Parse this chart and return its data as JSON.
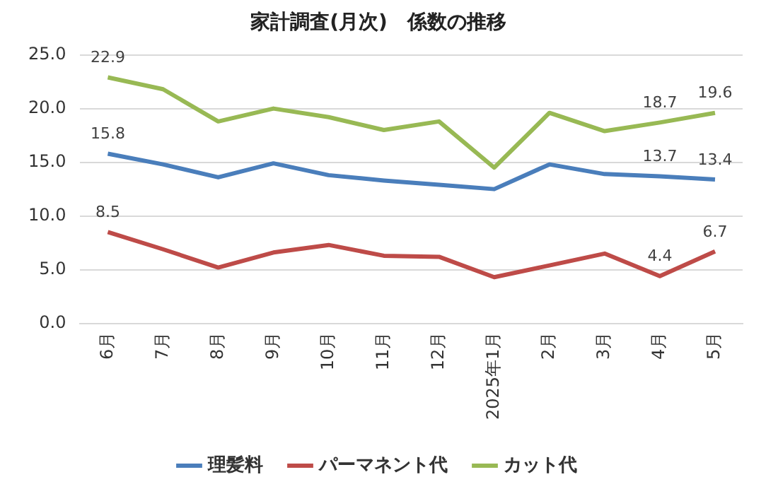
{
  "chart_data": {
    "type": "line",
    "title": "家計調査(月次)　係数の推移",
    "categories": [
      "6月",
      "7月",
      "8月",
      "9月",
      "10月",
      "11月",
      "12月",
      "2025年1月",
      "2月",
      "3月",
      "4月",
      "5月"
    ],
    "series": [
      {
        "name": "理髪料",
        "color": "#4a7ebb",
        "values": [
          15.8,
          14.8,
          13.6,
          14.9,
          13.8,
          13.3,
          12.9,
          12.5,
          14.8,
          13.9,
          13.7,
          13.4
        ],
        "value_labels": [
          "15.8",
          null,
          null,
          null,
          null,
          null,
          null,
          null,
          null,
          null,
          "13.7",
          "13.4"
        ]
      },
      {
        "name": "パーマネント代",
        "color": "#be4b48",
        "values": [
          8.5,
          6.9,
          5.2,
          6.6,
          7.3,
          6.3,
          6.2,
          4.3,
          5.4,
          6.5,
          4.4,
          6.7
        ],
        "value_labels": [
          "8.5",
          null,
          null,
          null,
          null,
          null,
          null,
          null,
          null,
          null,
          "4.4",
          "6.7"
        ]
      },
      {
        "name": "カット代",
        "color": "#98b954",
        "values": [
          22.9,
          21.8,
          18.8,
          20.0,
          19.2,
          18.0,
          18.8,
          14.5,
          19.6,
          17.9,
          18.7,
          19.6
        ],
        "value_labels": [
          "22.9",
          null,
          null,
          null,
          null,
          null,
          null,
          null,
          null,
          null,
          "18.7",
          "19.6"
        ]
      }
    ],
    "ylim": [
      0,
      25
    ],
    "yticks": [
      {
        "value": 0,
        "label": "0.0"
      },
      {
        "value": 5,
        "label": "5.0"
      },
      {
        "value": 10,
        "label": "10.0"
      },
      {
        "value": 15,
        "label": "15.0"
      },
      {
        "value": 20,
        "label": "20.0"
      },
      {
        "value": 25,
        "label": "25.0"
      }
    ],
    "grid": "y",
    "legend": "bottom",
    "marker": "none",
    "line_style": "solid"
  }
}
